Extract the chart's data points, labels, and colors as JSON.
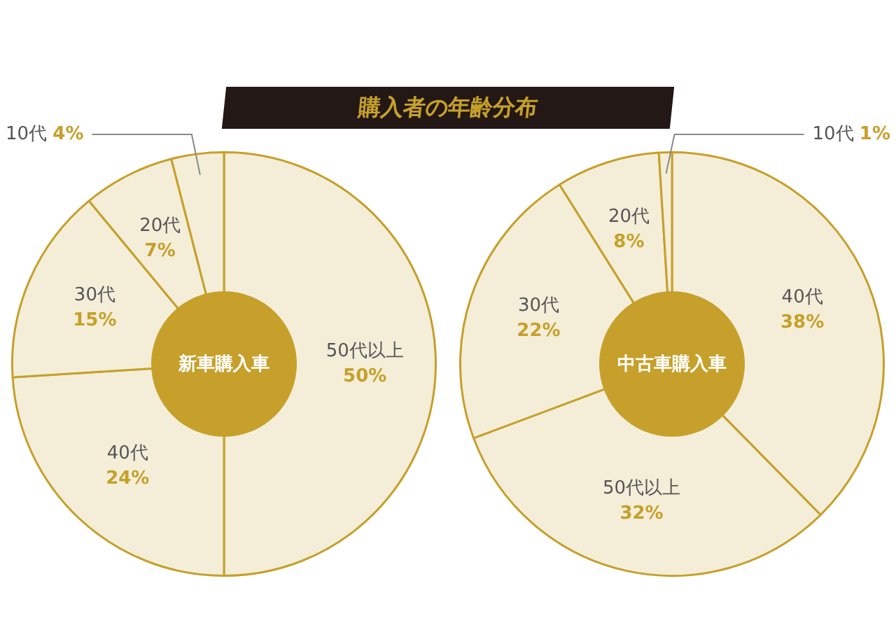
{
  "chart_data": [
    {
      "type": "donut",
      "title": "購入者の年齢分布",
      "annotations": [
        "新車購入車"
      ],
      "categories": [
        "50代以上",
        "40代",
        "30代",
        "20代",
        "10代"
      ],
      "values": [
        50,
        24,
        15,
        7,
        4
      ],
      "value_labels": [
        "50%",
        "24%",
        "15%",
        "7%",
        "4%"
      ],
      "colors": [
        "#f4eed9",
        "#f4eed9",
        "#f4eed9",
        "#f4eed9",
        "#f4eed9"
      ],
      "legend": false
    },
    {
      "type": "donut",
      "annotations": [
        "中古車購入車"
      ],
      "categories": [
        "40代",
        "50代以上",
        "30代",
        "20代",
        "10代"
      ],
      "values": [
        38,
        32,
        22,
        8,
        1
      ],
      "value_labels": [
        "38%",
        "32%",
        "22%",
        "8%",
        "1%"
      ],
      "colors": [
        "#f4eed9",
        "#f4eed9",
        "#f4eed9",
        "#f4eed9",
        "#f4eed9"
      ],
      "legend": false
    }
  ]
}
